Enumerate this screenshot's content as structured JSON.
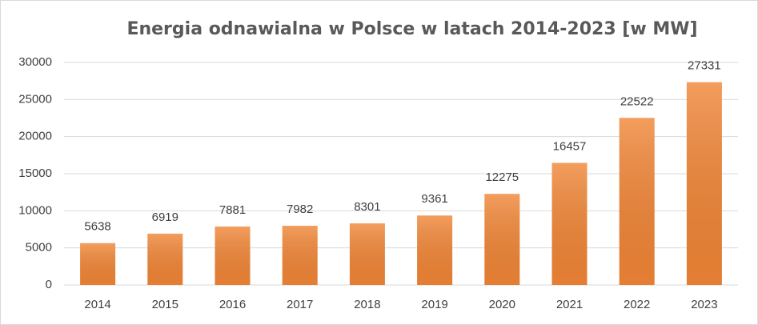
{
  "chart_data": {
    "type": "bar",
    "title": "Energia odnawialna w Polsce w latach 2014-2023 [w MW]",
    "categories": [
      "2014",
      "2015",
      "2016",
      "2017",
      "2018",
      "2019",
      "2020",
      "2021",
      "2022",
      "2023"
    ],
    "values": [
      5638,
      6919,
      7881,
      7982,
      8301,
      9361,
      12275,
      16457,
      22522,
      27331
    ],
    "color": "#f08536",
    "ylim": [
      0,
      30000
    ],
    "yticks": [
      0,
      5000,
      10000,
      15000,
      20000,
      25000,
      30000
    ],
    "grid": true
  }
}
